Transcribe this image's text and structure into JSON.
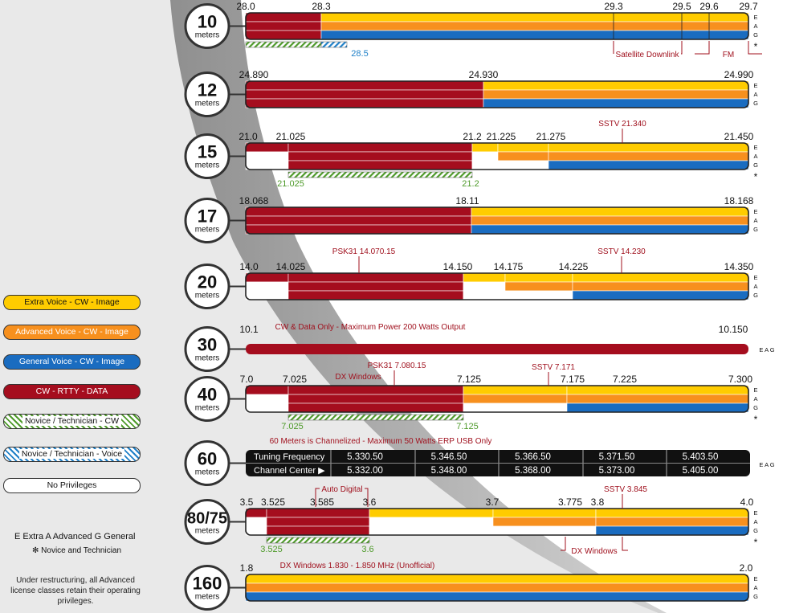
{
  "colors": {
    "extra": "#FFCC00",
    "advanced": "#F7901E",
    "general": "#1A6CC0",
    "cw": "#A50D1E",
    "novice_cw": "#4E9A2A",
    "novice_voice": "#1F80C8",
    "none": "#FFFFFF",
    "annotation": "#A0111E"
  },
  "legend": {
    "items": [
      {
        "label": "Extra Voice - CW - Image",
        "kind": "extra"
      },
      {
        "label": "Advanced Voice - CW - Image",
        "kind": "advanced"
      },
      {
        "label": "General Voice - CW - Image",
        "kind": "general"
      },
      {
        "label": "CW - RTTY - DATA",
        "kind": "cw"
      },
      {
        "label": "Novice / Technician - CW",
        "kind": "novice_cw"
      },
      {
        "label": "Novice / Technician - Voice",
        "kind": "novice_voice"
      },
      {
        "label": "No Privileges",
        "kind": "none"
      }
    ],
    "key_line1": "E Extra   A Advanced   G General",
    "key_line2": "✻ Novice and Technician",
    "note": "Under restructuring, all Advanced license classes retain their operating privileges."
  },
  "eag": [
    "E",
    "A",
    "G"
  ],
  "novice_mark": "*",
  "bands": [
    {
      "num": "10",
      "unit": "meters",
      "star": true,
      "freqs": [
        "28.0",
        "28.3",
        "29.3",
        "29.5",
        "29.6",
        "29.7"
      ],
      "annots": [
        {
          "text": "Satellite Downlink"
        },
        {
          "text": "FM"
        }
      ],
      "novice_labels": [
        "28.5"
      ]
    },
    {
      "num": "12",
      "unit": "meters",
      "star": false,
      "freqs": [
        "24.890",
        "24.930",
        "24.990"
      ],
      "annots": [],
      "novice_labels": []
    },
    {
      "num": "15",
      "unit": "meters",
      "star": true,
      "freqs": [
        "21.0",
        "21.025",
        "21.2",
        "21.225",
        "21.275",
        "21.450"
      ],
      "annots": [
        {
          "text": "SSTV 21.340"
        }
      ],
      "novice_labels": [
        "21.025",
        "21.2"
      ]
    },
    {
      "num": "17",
      "unit": "meters",
      "star": false,
      "freqs": [
        "18.068",
        "18.11",
        "18.168"
      ],
      "annots": [],
      "novice_labels": []
    },
    {
      "num": "20",
      "unit": "meters",
      "star": false,
      "freqs": [
        "14.0",
        "14.025",
        "14.150",
        "14.175",
        "14.225",
        "14.350"
      ],
      "annots": [
        {
          "text": "PSK31 14.070.15"
        },
        {
          "text": "SSTV 14.230"
        }
      ],
      "novice_labels": []
    },
    {
      "num": "30",
      "unit": "meters",
      "star": false,
      "freqs": [
        "10.1",
        "10.150"
      ],
      "annots": [
        {
          "text": "CW & Data Only - Maximum Power 200 Watts Output"
        }
      ],
      "novice_labels": []
    },
    {
      "num": "40",
      "unit": "meters",
      "star": true,
      "freqs": [
        "7.0",
        "7.025",
        "7.125",
        "7.175",
        "7.225",
        "7.300"
      ],
      "annots": [
        {
          "text": "PSK31 7.080.15"
        },
        {
          "text": "DX Windows"
        },
        {
          "text": "SSTV 7.171"
        }
      ],
      "novice_labels": [
        "7.025",
        "7.125"
      ]
    },
    {
      "num": "60",
      "unit": "meters",
      "star": false,
      "freqs": [],
      "annots": [
        {
          "text": "60 Meters is Channelized - Maximum 50 Watts ERP USB Only"
        }
      ],
      "novice_labels": [],
      "channels": {
        "row1_label": "Tuning Frequency",
        "row2_label": "Channel Center ▶",
        "tuning": [
          "5.330.50",
          "5.346.50",
          "5.366.50",
          "5.371.50",
          "5.403.50"
        ],
        "center": [
          "5.332.00",
          "5.348.00",
          "5.368.00",
          "5.373.00",
          "5.405.00"
        ]
      }
    },
    {
      "num": "80/75",
      "unit": "meters",
      "star": true,
      "freqs": [
        "3.5",
        "3.525",
        "3.585",
        "3.6",
        "3.7",
        "3.775",
        "3.8",
        "4.0"
      ],
      "annots": [
        {
          "text": "Auto Digital"
        },
        {
          "text": "SSTV 3.845"
        },
        {
          "text": "DX Windows"
        }
      ],
      "novice_labels": [
        "3.525",
        "3.6"
      ]
    },
    {
      "num": "160",
      "unit": "meters",
      "star": false,
      "freqs": [
        "1.8",
        "2.0"
      ],
      "annots": [
        {
          "text": "DX Windows 1.830 - 1.850 MHz (Unofficial)"
        }
      ],
      "novice_labels": []
    }
  ]
}
